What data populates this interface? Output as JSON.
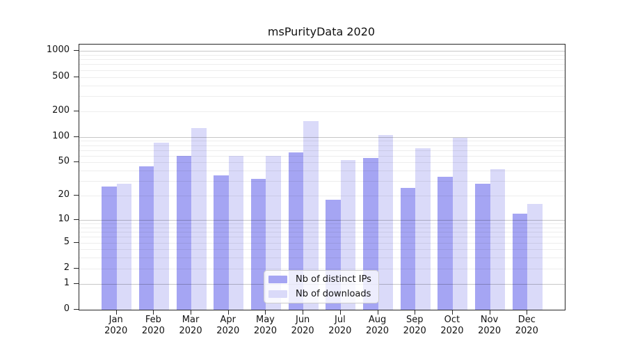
{
  "title": "msPurityData 2020",
  "chart_data": {
    "type": "bar",
    "title": "msPurityData 2020",
    "categories": [
      "Jan",
      "Feb",
      "Mar",
      "Apr",
      "May",
      "Jun",
      "Jul",
      "Aug",
      "Sep",
      "Oct",
      "Nov",
      "Dec"
    ],
    "category_year_line": "2020",
    "series": [
      {
        "name": "Nb of distinct IPs",
        "color": "#a5a5f3",
        "values": [
          26,
          45,
          60,
          35,
          32,
          66,
          18,
          56,
          25,
          34,
          28,
          12
        ]
      },
      {
        "name": "Nb of downloads",
        "color": "#dadaf9",
        "values": [
          28,
          85,
          128,
          60,
          60,
          152,
          53,
          106,
          73,
          98,
          42,
          16
        ]
      }
    ],
    "yscale": "symlog (position proportional to ln(1+v))",
    "ylim": [
      0,
      1200
    ],
    "yticks": [
      1000,
      500,
      200,
      100,
      50,
      20,
      10,
      5,
      2,
      1,
      0
    ],
    "major_gridlines": [
      1,
      10,
      100,
      1000
    ],
    "minor_gridlines": [
      2,
      3,
      4,
      5,
      6,
      7,
      8,
      9,
      20,
      30,
      40,
      50,
      60,
      70,
      80,
      90,
      200,
      300,
      400,
      500,
      600,
      700,
      800,
      900
    ],
    "grid": true,
    "legend_position": "bottom-center-inside",
    "xlabel": "",
    "ylabel": ""
  },
  "colors": {
    "bar_dark": "#a5a5f3",
    "bar_light": "#dadaf9",
    "major_grid": "rgba(0,0,0,0.22)",
    "minor_grid": "rgba(0,0,0,0.07)",
    "axis": "#262626",
    "legend_border": "#cccccc",
    "legend_background": "rgba(255,255,255,0.8)"
  }
}
